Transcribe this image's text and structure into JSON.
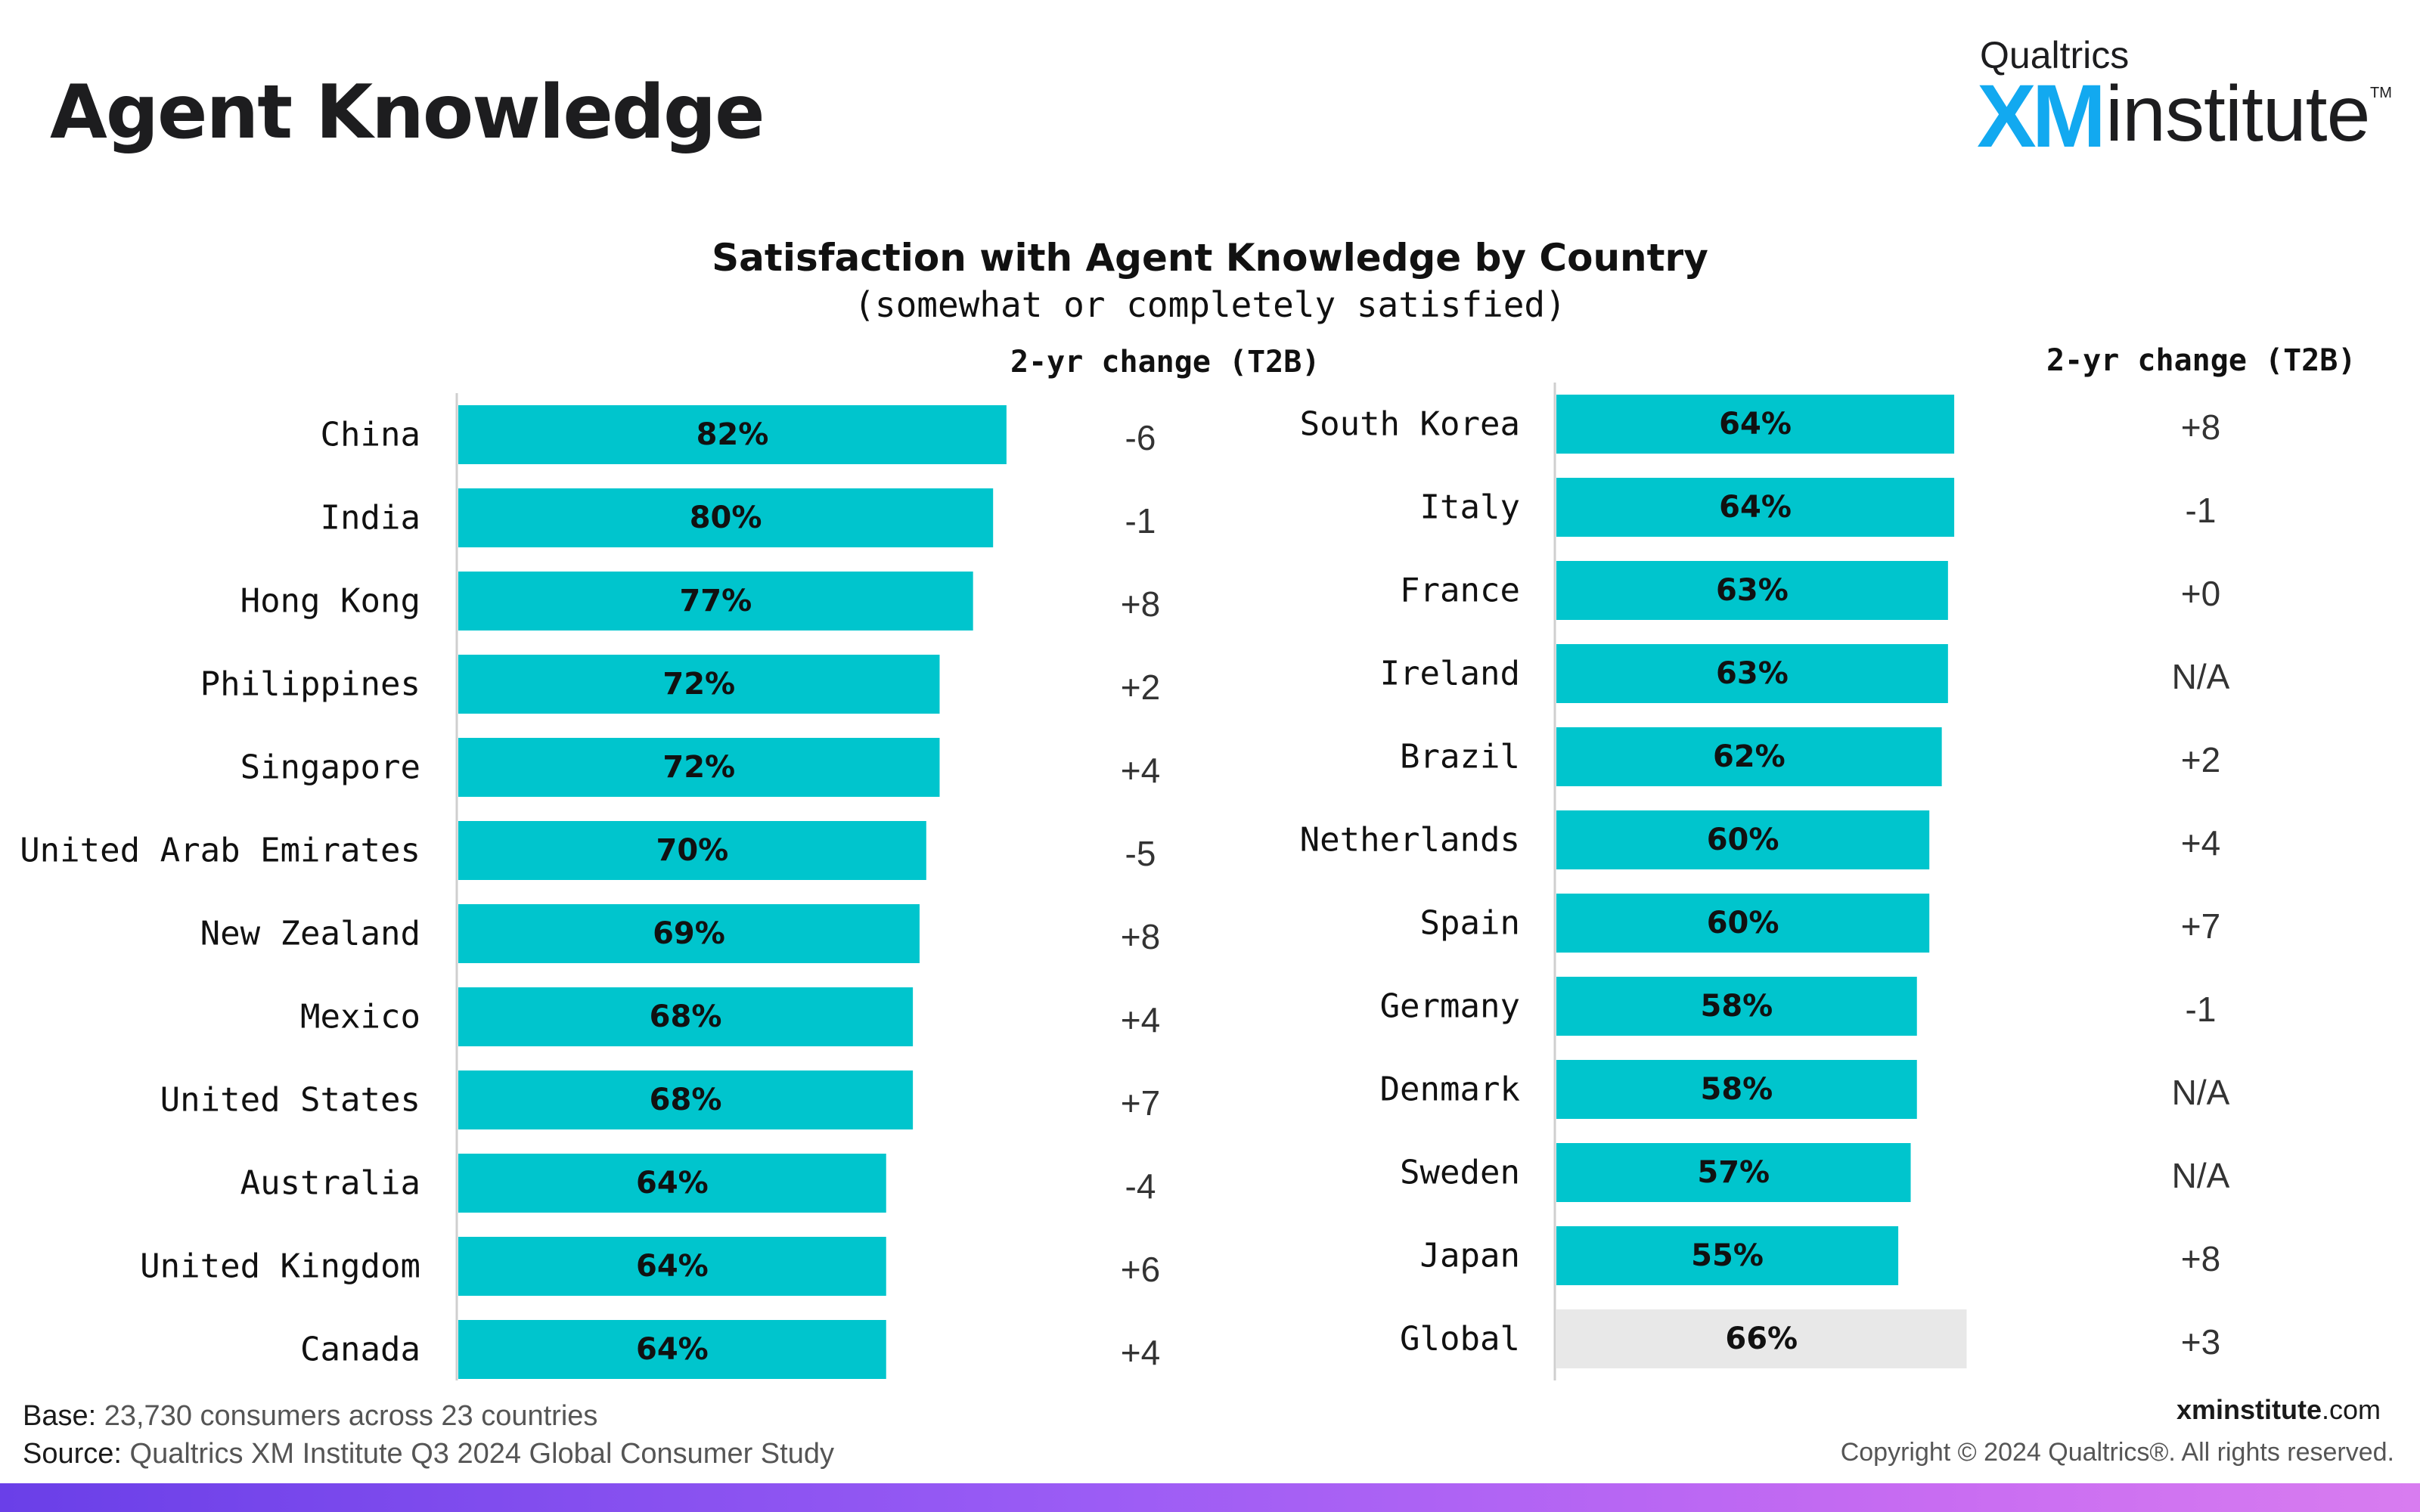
{
  "header": {
    "title": "Agent Knowledge",
    "brand_top": "Qualtrics",
    "brand_xm": "XM",
    "brand_institute": "institute",
    "brand_tm": "TM"
  },
  "colors": {
    "bar": "#00c5cd",
    "global_bar": "#e8e8e8",
    "axis": "#cfcfcf"
  },
  "chart_data": {
    "type": "bar",
    "orientation": "horizontal",
    "title": "Satisfaction with Agent Knowledge by Country",
    "subtitle": "(somewhat or completely satisfied)",
    "change_header": "2-yr change (T2B)",
    "xlim": [
      0,
      100
    ],
    "panels": [
      {
        "categories": [
          "China",
          "India",
          "Hong Kong",
          "Philippines",
          "Singapore",
          "United Arab Emirates",
          "New Zealand",
          "Mexico",
          "United States",
          "Australia",
          "United Kingdom",
          "Canada"
        ],
        "values": [
          82,
          80,
          77,
          72,
          72,
          70,
          69,
          68,
          68,
          64,
          64,
          64
        ],
        "labels": [
          "82%",
          "80%",
          "77%",
          "72%",
          "72%",
          "70%",
          "69%",
          "68%",
          "68%",
          "64%",
          "64%",
          "64%"
        ],
        "changes": [
          "-6",
          "-1",
          "+8",
          "+2",
          "+4",
          "-5",
          "+8",
          "+4",
          "+7",
          "-4",
          "+6",
          "+4"
        ]
      },
      {
        "categories": [
          "South Korea",
          "Italy",
          "France",
          "Ireland",
          "Brazil",
          "Netherlands",
          "Spain",
          "Germany",
          "Denmark",
          "Sweden",
          "Japan",
          "Global"
        ],
        "values": [
          64,
          64,
          63,
          63,
          62,
          60,
          60,
          58,
          58,
          57,
          55,
          66
        ],
        "labels": [
          "64%",
          "64%",
          "63%",
          "63%",
          "62%",
          "60%",
          "60%",
          "58%",
          "58%",
          "57%",
          "55%",
          "66%"
        ],
        "changes": [
          "+8",
          "-1",
          "+0",
          "N/A",
          "+2",
          "+4",
          "+7",
          "-1",
          "N/A",
          "N/A",
          "+8",
          "+3"
        ],
        "highlight": "Global"
      }
    ]
  },
  "footer": {
    "base_label": "Base:",
    "base_text": "23,730 consumers across 23 countries",
    "source_label": "Source:",
    "source_text": "Qualtrics XM Institute Q3 2024 Global Consumer Study",
    "site_bold": "xminstitute",
    "site_rest": ".com",
    "copyright": "Copyright © 2024 Qualtrics®. All rights reserved."
  }
}
